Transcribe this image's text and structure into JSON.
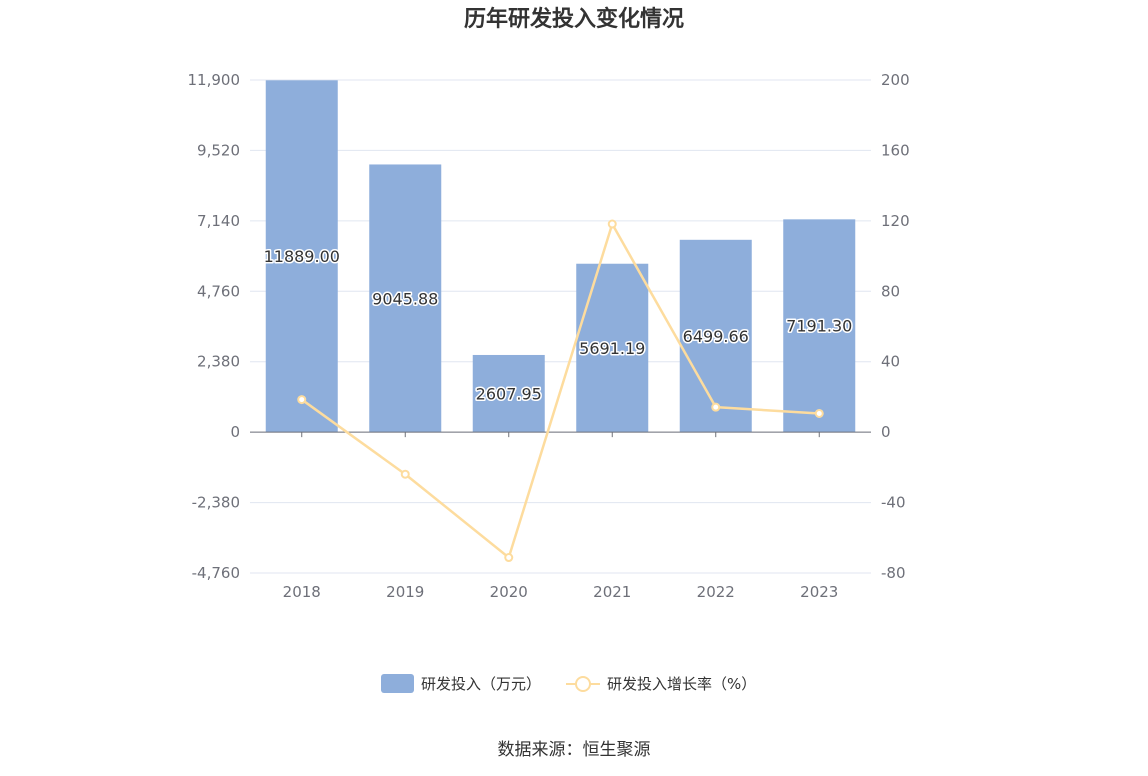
{
  "chart_data": {
    "type": "bar",
    "title": "历年研发投入变化情况",
    "categories": [
      "2018",
      "2019",
      "2020",
      "2021",
      "2022",
      "2023"
    ],
    "series": [
      {
        "name": "研发投入（万元）",
        "type": "bar",
        "axis": "left",
        "color": "#8eaedb",
        "values": [
          11889.0,
          9045.88,
          2607.95,
          5691.19,
          6499.66,
          7191.3
        ],
        "labels": [
          "11889.00",
          "9045.88",
          "2607.95",
          "5691.19",
          "6499.66",
          "7191.30"
        ]
      },
      {
        "name": "研发投入增长率（%）",
        "type": "line",
        "axis": "right",
        "color": "#fddc9e",
        "values": [
          18.5,
          -23.9,
          -71.2,
          118.2,
          14.2,
          10.6
        ]
      }
    ],
    "y_left": {
      "min": -4760,
      "max": 11900,
      "ticks": [
        -4760,
        -2380,
        0,
        2380,
        4760,
        7140,
        9520,
        11900
      ],
      "tick_labels": [
        "-4,760",
        "-2,380",
        "0",
        "2,380",
        "4,760",
        "7,140",
        "9,520",
        "11,900"
      ]
    },
    "y_right": {
      "min": -80,
      "max": 200,
      "ticks": [
        -80,
        -40,
        0,
        40,
        80,
        120,
        160,
        200
      ],
      "tick_labels": [
        "-80",
        "-40",
        "0",
        "40",
        "80",
        "120",
        "160",
        "200"
      ]
    },
    "legend_position": "bottom-center",
    "grid": true
  },
  "source_text": "数据来源：恒生聚源"
}
